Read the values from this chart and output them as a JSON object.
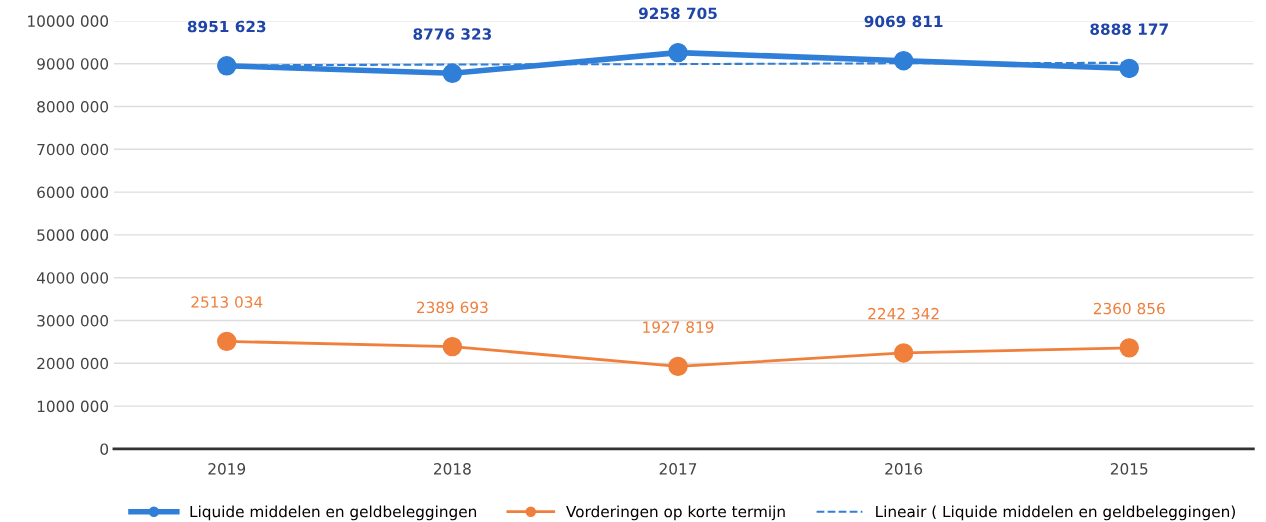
{
  "chart_data": {
    "type": "line",
    "categories": [
      "2019",
      "2018",
      "2017",
      "2016",
      "2015"
    ],
    "series": [
      {
        "name": "Liquide middelen en geldbeleggingen",
        "color": "#2f7fd8",
        "values": [
          8951623,
          8776323,
          9258705,
          9069811,
          8888177
        ],
        "value_labels": [
          "8951 623",
          "8776 323",
          "9258 705",
          "9069 811",
          "8888 177"
        ],
        "marker": "circle",
        "line_style": "solid"
      },
      {
        "name": "Vorderingen op korte termijn",
        "color": "#f07f3c",
        "values": [
          2513034,
          2389693,
          1927819,
          2242342,
          2360856
        ],
        "value_labels": [
          "2513 034",
          "2389 693",
          "1927 819",
          "2242 342",
          "2360 856"
        ],
        "marker": "circle",
        "line_style": "solid"
      },
      {
        "name": "Lineair ( Liquide middelen en geldbeleggingen)",
        "color": "#2f7fd8",
        "values": [
          8960000,
          8980000,
          8990000,
          9010000,
          9020000
        ],
        "marker": "none",
        "line_style": "dashed"
      }
    ],
    "ylim": [
      0,
      10000000
    ],
    "yticks": [
      0,
      {
        "value": 1000000,
        "label": "1000 000"
      },
      {
        "value": 2000000,
        "label": "2000 000"
      },
      {
        "value": 3000000,
        "label": "3000 000"
      },
      {
        "value": 4000000,
        "label": "4000 000"
      },
      {
        "value": 5000000,
        "label": "5000 000"
      },
      {
        "value": 6000000,
        "label": "6000 000"
      },
      {
        "value": 7000000,
        "label": "7000 000"
      },
      {
        "value": 8000000,
        "label": "8000 000"
      },
      {
        "value": 9000000,
        "label": "9000 000"
      },
      {
        "value": 10000000,
        "label": "10000 000"
      }
    ],
    "grid": "y",
    "legend": "bottom"
  }
}
